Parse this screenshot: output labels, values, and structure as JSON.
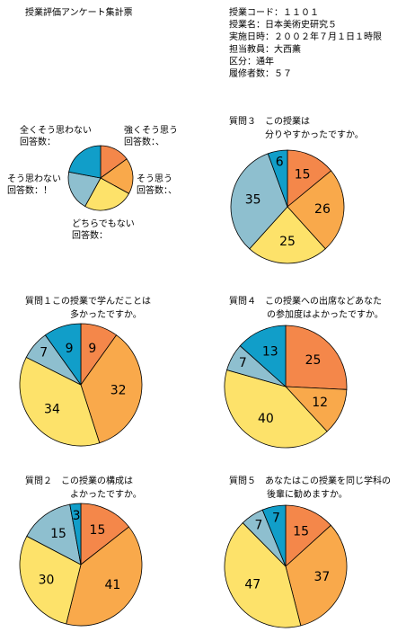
{
  "header": {
    "title": "授業評価アンケート集計票",
    "info": [
      "授業コード：１１０１",
      "授業名：日本美術史研究５",
      "実施日時：２００２年７月１日１時限",
      "担当教員：大西薫",
      "区分：通年",
      "履修者数：５７"
    ]
  },
  "chart_data": [
    {
      "type": "pie",
      "categories": [
        [
          "強くそう思う",
          "回答数：、"
        ],
        [
          "そう思う",
          "回答数：、"
        ],
        [
          "どちらでもない",
          "回答数："
        ],
        [
          "そう思わない",
          "回答数：！"
        ],
        [
          "全くそう思わない",
          "回答数："
        ]
      ],
      "values": [
        15,
        18,
        25,
        20,
        22
      ],
      "colors": [
        "#f4874a",
        "#f9a94b",
        "#fde26a",
        "#8ebfcf",
        "#119ec9"
      ]
    },
    {
      "type": "pie",
      "title": [
        "質問３　この授業は",
        "分りやすかったですか。"
      ],
      "values": [
        15,
        26,
        25,
        35,
        6
      ],
      "colors": [
        "#f4874a",
        "#f9a94b",
        "#fde26a",
        "#8ebfcf",
        "#119ec9"
      ]
    },
    {
      "type": "pie",
      "title": [
        "質問１この授業で学んだことは",
        "多かったですか。"
      ],
      "values": [
        9,
        32,
        34,
        7,
        9
      ],
      "colors": [
        "#f4874a",
        "#f9a94b",
        "#fde26a",
        "#8ebfcf",
        "#119ec9"
      ]
    },
    {
      "type": "pie",
      "title": [
        "質問４　この授業への出席などあなた",
        "の参加度はよかったですか。"
      ],
      "values": [
        25,
        12,
        40,
        7,
        13
      ],
      "colors": [
        "#f4874a",
        "#f9a94b",
        "#fde26a",
        "#8ebfcf",
        "#119ec9"
      ]
    },
    {
      "type": "pie",
      "title": [
        "質問２　この授業の構成は",
        "よかったですか。"
      ],
      "values": [
        15,
        41,
        30,
        15,
        3
      ],
      "colors": [
        "#f4874a",
        "#f9a94b",
        "#fde26a",
        "#8ebfcf",
        "#119ec9"
      ]
    },
    {
      "type": "pie",
      "title": [
        "質問５　あなたはこの授業を同じ学科の",
        "後輩に勧めますか。"
      ],
      "values": [
        15,
        37,
        47,
        7,
        7
      ],
      "colors": [
        "#f4874a",
        "#f9a94b",
        "#fde26a",
        "#8ebfcf",
        "#119ec9"
      ]
    }
  ]
}
